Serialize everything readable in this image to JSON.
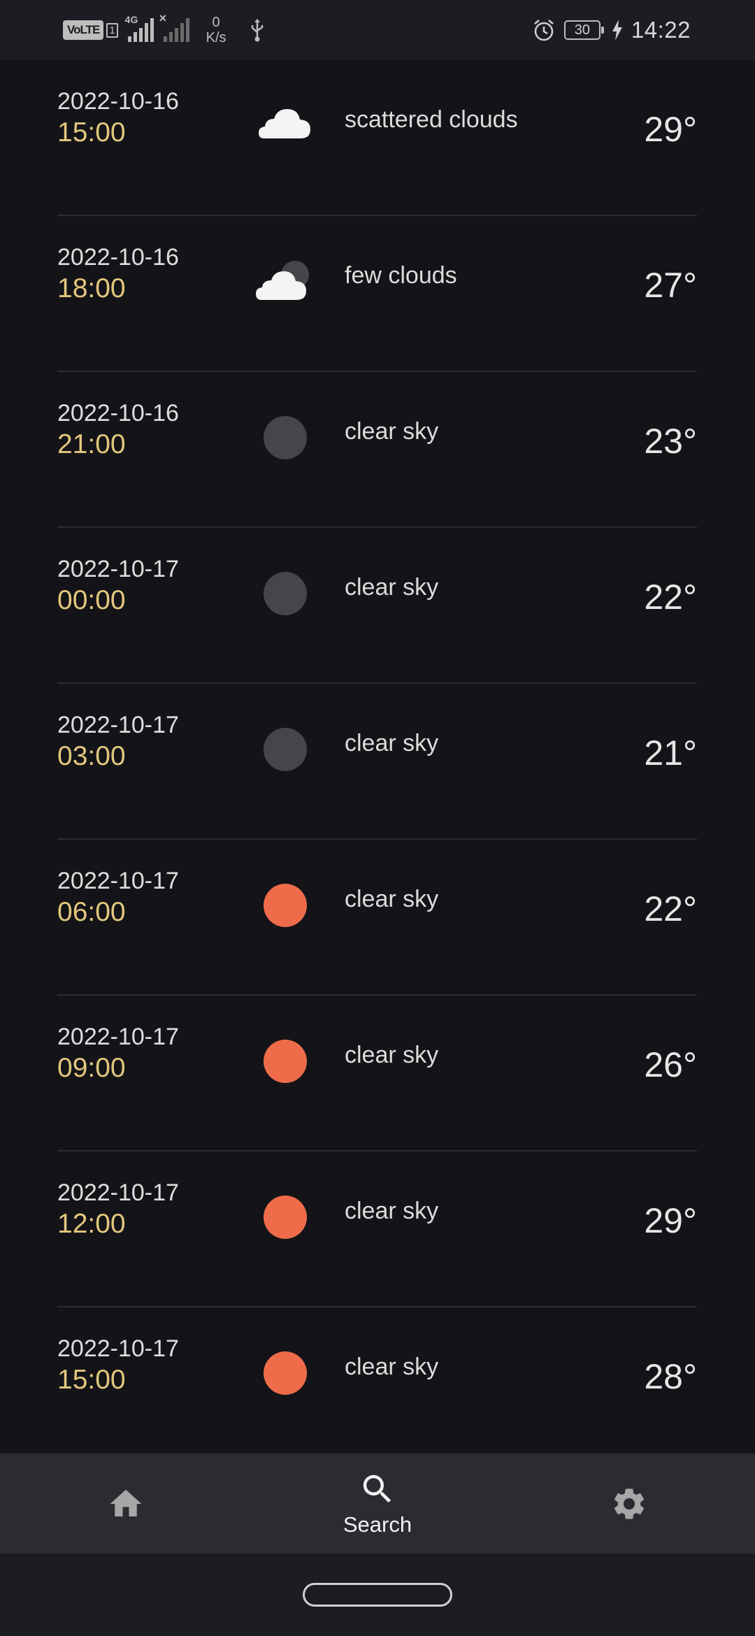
{
  "status_bar": {
    "volte": "VoLTE",
    "sim_slot": "1",
    "network_type": "4G",
    "net_speed_value": "0",
    "net_speed_unit": "K/s",
    "battery_level": "30",
    "time": "14:22"
  },
  "forecast": [
    {
      "date": "2022-10-16",
      "time": "15:00",
      "icon": "scattered-clouds-icon",
      "description": "scattered clouds",
      "temperature": "29°"
    },
    {
      "date": "2022-10-16",
      "time": "18:00",
      "icon": "few-clouds-night-icon",
      "description": "few clouds",
      "temperature": "27°"
    },
    {
      "date": "2022-10-16",
      "time": "21:00",
      "icon": "moon-icon",
      "description": "clear sky",
      "temperature": "23°"
    },
    {
      "date": "2022-10-17",
      "time": "00:00",
      "icon": "moon-icon",
      "description": "clear sky",
      "temperature": "22°"
    },
    {
      "date": "2022-10-17",
      "time": "03:00",
      "icon": "moon-icon",
      "description": "clear sky",
      "temperature": "21°"
    },
    {
      "date": "2022-10-17",
      "time": "06:00",
      "icon": "sun-icon",
      "description": "clear sky",
      "temperature": "22°"
    },
    {
      "date": "2022-10-17",
      "time": "09:00",
      "icon": "sun-icon",
      "description": "clear sky",
      "temperature": "26°"
    },
    {
      "date": "2022-10-17",
      "time": "12:00",
      "icon": "sun-icon",
      "description": "clear sky",
      "temperature": "29°"
    },
    {
      "date": "2022-10-17",
      "time": "15:00",
      "icon": "sun-icon",
      "description": "clear sky",
      "temperature": "28°"
    }
  ],
  "colors": {
    "background": "#141418",
    "time_accent": "#e2c77d",
    "sun": "#ef6c4a",
    "moon": "#45464b",
    "cloud": "#f4f4f4",
    "nav_background": "#2b2c31"
  },
  "bottom_nav": {
    "items": [
      {
        "id": "home",
        "icon": "home-icon",
        "label": ""
      },
      {
        "id": "search",
        "icon": "search-icon",
        "label": "Search"
      },
      {
        "id": "settings",
        "icon": "gear-icon",
        "label": ""
      }
    ],
    "selected": "search"
  }
}
